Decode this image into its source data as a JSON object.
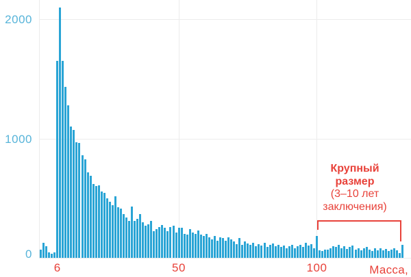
{
  "colors": {
    "bar": "#29a4d5",
    "y_label_blue": "#57b4d9",
    "accent_red": "#e8423a",
    "gridline": "#ececec"
  },
  "annotation": {
    "title": "Крупный размер",
    "subtitle": "(3–10 лет заключения)"
  },
  "chart_data": {
    "type": "bar",
    "subtype": "histogram",
    "title": "",
    "xlabel": "Масса,",
    "ylabel": "",
    "legend_position": "none",
    "grid": "horizontal at 1000 and 2000, vertical at x=50 and x=100",
    "x_bin_start": 0,
    "bin_width": 1,
    "xlim": [
      0,
      132
    ],
    "ylim": [
      0,
      2200
    ],
    "y_ticks": [
      0,
      1000,
      2000
    ],
    "y_tick_labels": [
      "0",
      "1000",
      "2000"
    ],
    "x_ticks": [
      6,
      50,
      100
    ],
    "x_tick_labels": [
      "6",
      "50",
      "100"
    ],
    "x_gridline_values": [
      50,
      100
    ],
    "annotations": [
      {
        "text": "Крупный размер (3–10 лет заключения)",
        "range_start": 100,
        "range_end": 131
      }
    ],
    "values": [
      68,
      128,
      100,
      48,
      32,
      44,
      1650,
      2100,
      1650,
      1430,
      1280,
      1100,
      1070,
      970,
      960,
      860,
      825,
      715,
      690,
      620,
      600,
      605,
      555,
      545,
      500,
      470,
      440,
      515,
      425,
      410,
      365,
      340,
      310,
      430,
      310,
      325,
      365,
      300,
      270,
      280,
      310,
      225,
      240,
      260,
      275,
      250,
      225,
      260,
      270,
      210,
      250,
      255,
      200,
      195,
      240,
      210,
      200,
      230,
      195,
      185,
      200,
      170,
      155,
      185,
      145,
      170,
      165,
      145,
      170,
      155,
      140,
      115,
      165,
      110,
      140,
      120,
      110,
      125,
      100,
      115,
      105,
      125,
      90,
      110,
      120,
      95,
      110,
      90,
      105,
      80,
      95,
      110,
      80,
      95,
      110,
      90,
      125,
      105,
      115,
      80,
      185,
      65,
      60,
      70,
      70,
      80,
      95,
      90,
      110,
      80,
      95,
      75,
      90,
      105,
      70,
      80,
      65,
      80,
      90,
      70,
      60,
      80,
      65,
      80,
      65,
      75,
      60,
      70,
      80,
      65,
      40,
      110
    ]
  }
}
